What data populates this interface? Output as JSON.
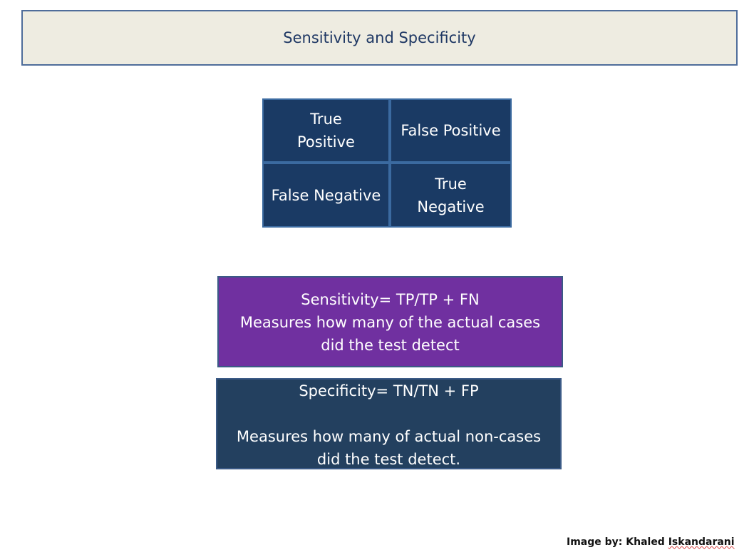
{
  "title": "Sensitivity and Specificity",
  "matrix": {
    "true_positive": "True Positive",
    "false_positive": "False Positive",
    "false_negative": "False Negative",
    "true_negative": "True Negative"
  },
  "sensitivity": {
    "formula": "Sensitivity= TP/TP + FN",
    "description_line1": "Measures how many of the actual cases",
    "description_line2": "did the test detect"
  },
  "specificity": {
    "formula": "Specificity= TN/TN + FP",
    "description_line1": "Measures how many of actual non-cases",
    "description_line2": "did the test detect."
  },
  "credit": {
    "prefix": "Image by: Khaled ",
    "surname": "Iskandarani"
  },
  "colors": {
    "matrix_fill": "#1a3a64",
    "sensitivity_fill": "#7030a0",
    "specificity_fill": "#23405f",
    "title_fill": "#eeece1"
  }
}
